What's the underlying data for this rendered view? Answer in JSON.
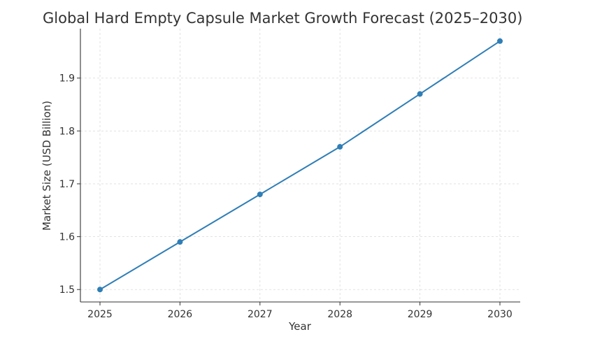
{
  "chart_data": {
    "type": "line",
    "title": "Global Hard Empty Capsule Market Growth Forecast (2025–2030)",
    "xlabel": "Year",
    "ylabel": "Market Size (USD Billion)",
    "x": [
      "2025",
      "2026",
      "2027",
      "2028",
      "2029",
      "2030"
    ],
    "series": [
      {
        "values": [
          1.5,
          1.59,
          1.68,
          1.77,
          1.87,
          1.97
        ]
      }
    ],
    "yticks": [
      "1.5",
      "1.6",
      "1.7",
      "1.8",
      "1.9"
    ],
    "ylim": [
      1.4765,
      1.9935
    ],
    "grid": true,
    "legend": "none",
    "color": "#2f7eb6"
  }
}
